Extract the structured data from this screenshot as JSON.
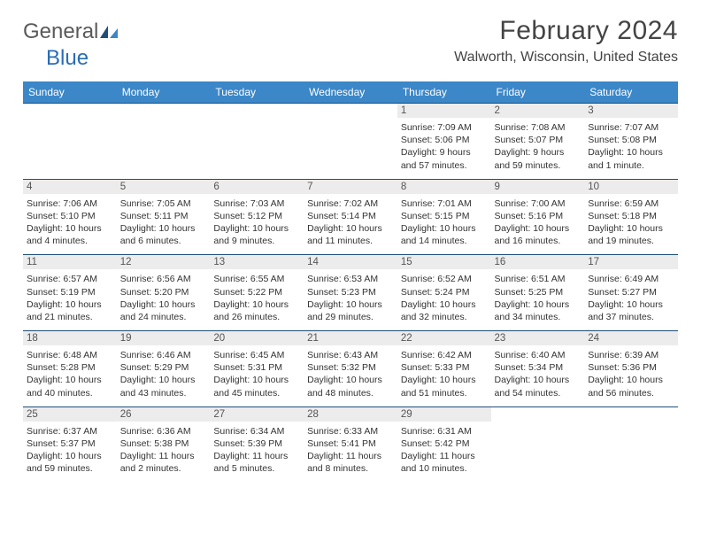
{
  "brand": {
    "text1": "General",
    "text2": "Blue"
  },
  "title": "February 2024",
  "location": "Walworth, Wisconsin, United States",
  "colors": {
    "header_bg": "#3b87c8",
    "header_text": "#ffffff",
    "rule": "#1f4e79",
    "daynum_bg": "#ececec",
    "logo_blue": "#2a6db5",
    "text": "#333333"
  },
  "dayNames": [
    "Sunday",
    "Monday",
    "Tuesday",
    "Wednesday",
    "Thursday",
    "Friday",
    "Saturday"
  ],
  "weeks": [
    [
      null,
      null,
      null,
      null,
      {
        "n": "1",
        "sr": "Sunrise: 7:09 AM",
        "ss": "Sunset: 5:06 PM",
        "dl": "Daylight: 9 hours and 57 minutes."
      },
      {
        "n": "2",
        "sr": "Sunrise: 7:08 AM",
        "ss": "Sunset: 5:07 PM",
        "dl": "Daylight: 9 hours and 59 minutes."
      },
      {
        "n": "3",
        "sr": "Sunrise: 7:07 AM",
        "ss": "Sunset: 5:08 PM",
        "dl": "Daylight: 10 hours and 1 minute."
      }
    ],
    [
      {
        "n": "4",
        "sr": "Sunrise: 7:06 AM",
        "ss": "Sunset: 5:10 PM",
        "dl": "Daylight: 10 hours and 4 minutes."
      },
      {
        "n": "5",
        "sr": "Sunrise: 7:05 AM",
        "ss": "Sunset: 5:11 PM",
        "dl": "Daylight: 10 hours and 6 minutes."
      },
      {
        "n": "6",
        "sr": "Sunrise: 7:03 AM",
        "ss": "Sunset: 5:12 PM",
        "dl": "Daylight: 10 hours and 9 minutes."
      },
      {
        "n": "7",
        "sr": "Sunrise: 7:02 AM",
        "ss": "Sunset: 5:14 PM",
        "dl": "Daylight: 10 hours and 11 minutes."
      },
      {
        "n": "8",
        "sr": "Sunrise: 7:01 AM",
        "ss": "Sunset: 5:15 PM",
        "dl": "Daylight: 10 hours and 14 minutes."
      },
      {
        "n": "9",
        "sr": "Sunrise: 7:00 AM",
        "ss": "Sunset: 5:16 PM",
        "dl": "Daylight: 10 hours and 16 minutes."
      },
      {
        "n": "10",
        "sr": "Sunrise: 6:59 AM",
        "ss": "Sunset: 5:18 PM",
        "dl": "Daylight: 10 hours and 19 minutes."
      }
    ],
    [
      {
        "n": "11",
        "sr": "Sunrise: 6:57 AM",
        "ss": "Sunset: 5:19 PM",
        "dl": "Daylight: 10 hours and 21 minutes."
      },
      {
        "n": "12",
        "sr": "Sunrise: 6:56 AM",
        "ss": "Sunset: 5:20 PM",
        "dl": "Daylight: 10 hours and 24 minutes."
      },
      {
        "n": "13",
        "sr": "Sunrise: 6:55 AM",
        "ss": "Sunset: 5:22 PM",
        "dl": "Daylight: 10 hours and 26 minutes."
      },
      {
        "n": "14",
        "sr": "Sunrise: 6:53 AM",
        "ss": "Sunset: 5:23 PM",
        "dl": "Daylight: 10 hours and 29 minutes."
      },
      {
        "n": "15",
        "sr": "Sunrise: 6:52 AM",
        "ss": "Sunset: 5:24 PM",
        "dl": "Daylight: 10 hours and 32 minutes."
      },
      {
        "n": "16",
        "sr": "Sunrise: 6:51 AM",
        "ss": "Sunset: 5:25 PM",
        "dl": "Daylight: 10 hours and 34 minutes."
      },
      {
        "n": "17",
        "sr": "Sunrise: 6:49 AM",
        "ss": "Sunset: 5:27 PM",
        "dl": "Daylight: 10 hours and 37 minutes."
      }
    ],
    [
      {
        "n": "18",
        "sr": "Sunrise: 6:48 AM",
        "ss": "Sunset: 5:28 PM",
        "dl": "Daylight: 10 hours and 40 minutes."
      },
      {
        "n": "19",
        "sr": "Sunrise: 6:46 AM",
        "ss": "Sunset: 5:29 PM",
        "dl": "Daylight: 10 hours and 43 minutes."
      },
      {
        "n": "20",
        "sr": "Sunrise: 6:45 AM",
        "ss": "Sunset: 5:31 PM",
        "dl": "Daylight: 10 hours and 45 minutes."
      },
      {
        "n": "21",
        "sr": "Sunrise: 6:43 AM",
        "ss": "Sunset: 5:32 PM",
        "dl": "Daylight: 10 hours and 48 minutes."
      },
      {
        "n": "22",
        "sr": "Sunrise: 6:42 AM",
        "ss": "Sunset: 5:33 PM",
        "dl": "Daylight: 10 hours and 51 minutes."
      },
      {
        "n": "23",
        "sr": "Sunrise: 6:40 AM",
        "ss": "Sunset: 5:34 PM",
        "dl": "Daylight: 10 hours and 54 minutes."
      },
      {
        "n": "24",
        "sr": "Sunrise: 6:39 AM",
        "ss": "Sunset: 5:36 PM",
        "dl": "Daylight: 10 hours and 56 minutes."
      }
    ],
    [
      {
        "n": "25",
        "sr": "Sunrise: 6:37 AM",
        "ss": "Sunset: 5:37 PM",
        "dl": "Daylight: 10 hours and 59 minutes."
      },
      {
        "n": "26",
        "sr": "Sunrise: 6:36 AM",
        "ss": "Sunset: 5:38 PM",
        "dl": "Daylight: 11 hours and 2 minutes."
      },
      {
        "n": "27",
        "sr": "Sunrise: 6:34 AM",
        "ss": "Sunset: 5:39 PM",
        "dl": "Daylight: 11 hours and 5 minutes."
      },
      {
        "n": "28",
        "sr": "Sunrise: 6:33 AM",
        "ss": "Sunset: 5:41 PM",
        "dl": "Daylight: 11 hours and 8 minutes."
      },
      {
        "n": "29",
        "sr": "Sunrise: 6:31 AM",
        "ss": "Sunset: 5:42 PM",
        "dl": "Daylight: 11 hours and 10 minutes."
      },
      null,
      null
    ]
  ]
}
